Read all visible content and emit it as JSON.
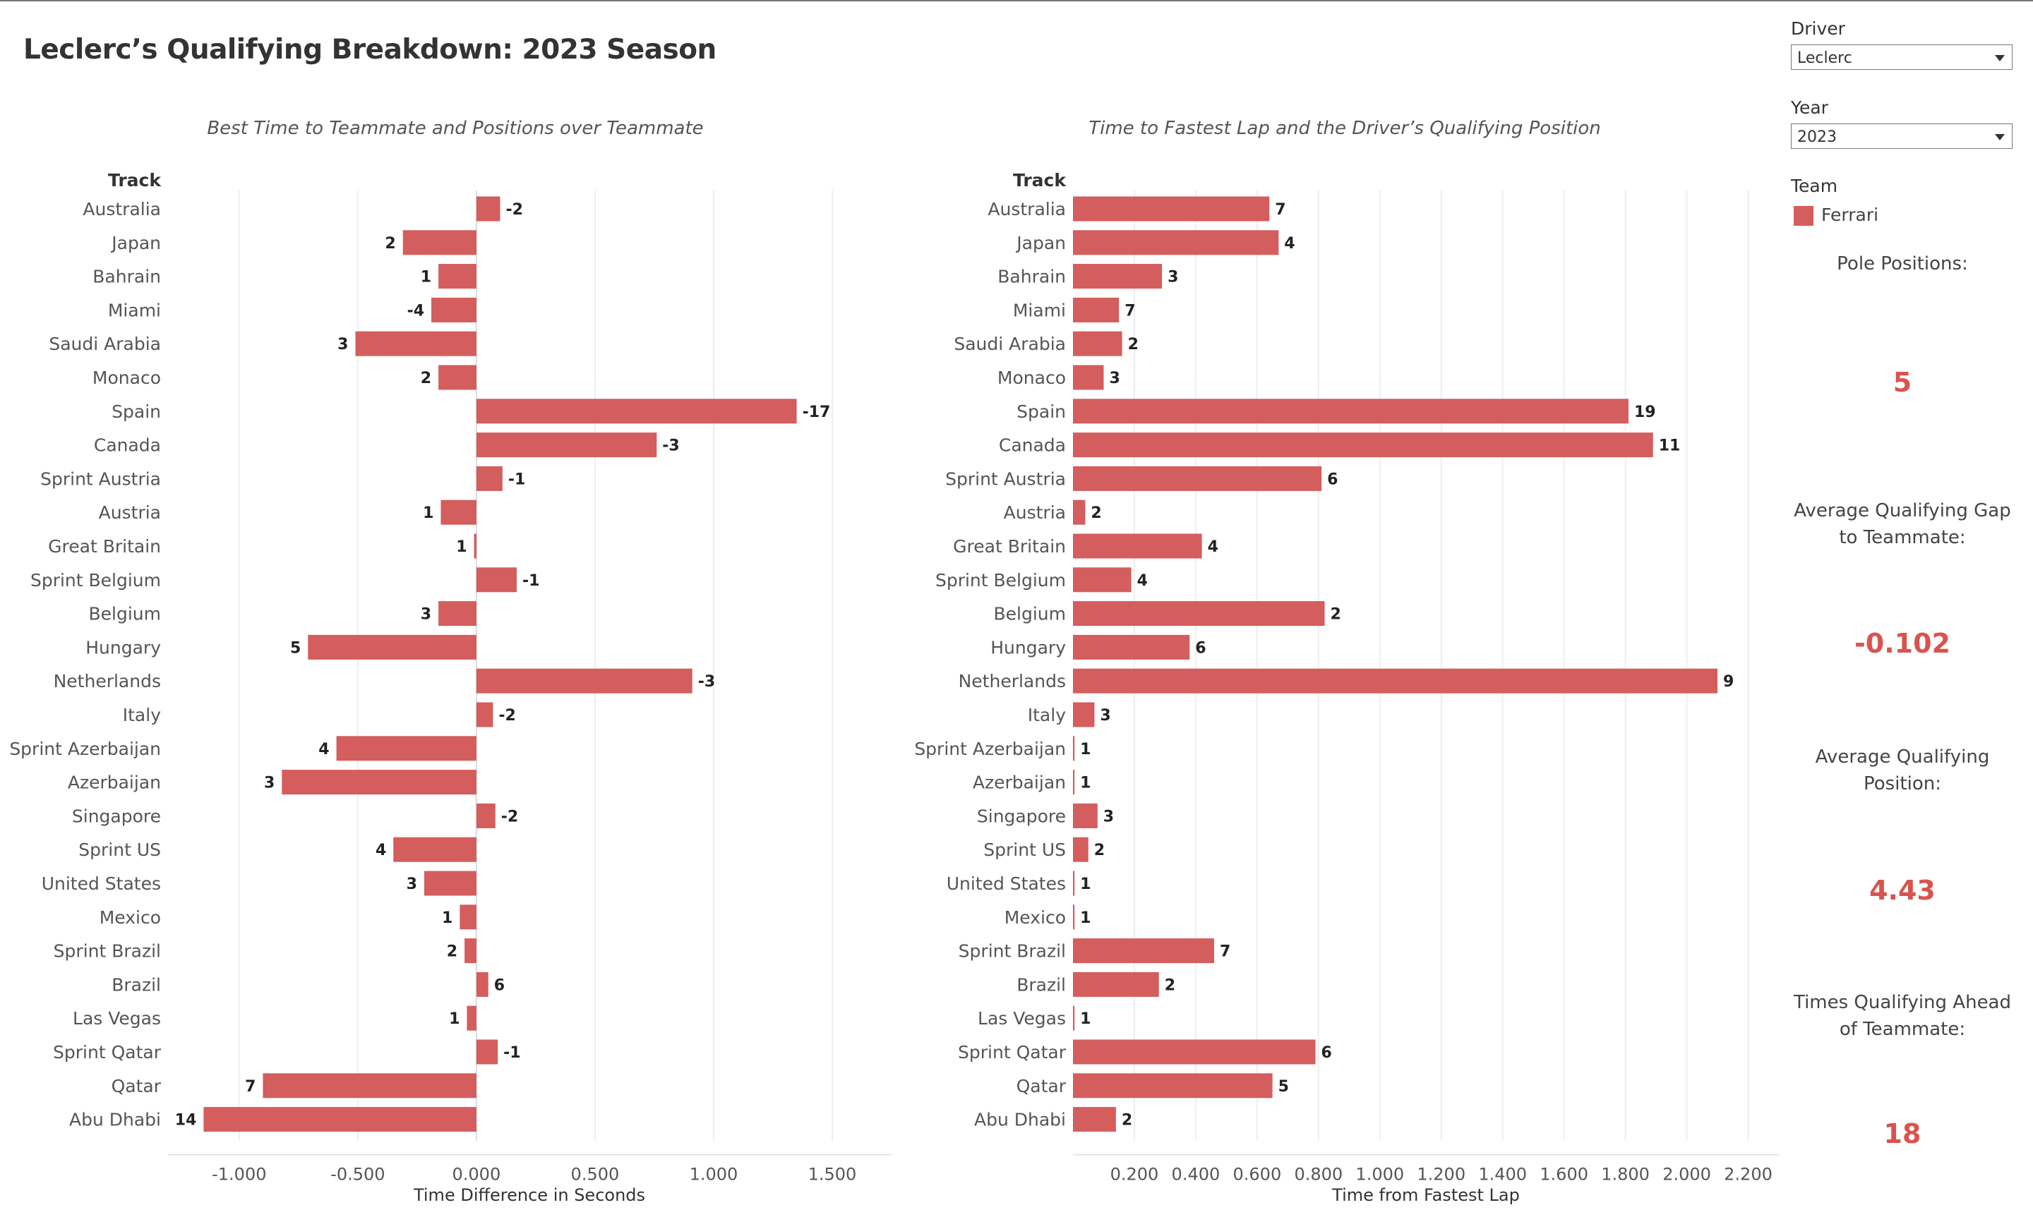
{
  "title": "Leclerc’s Qualifying Breakdown: 2023 Season",
  "colors": {
    "bar": "#d45d5d",
    "kpi": "#d9534f",
    "text": "#333333",
    "gridline": "#eeeeee"
  },
  "sidebar": {
    "driver_label": "Driver",
    "driver_value": "Leclerc",
    "year_label": "Year",
    "year_value": "2023",
    "team_label": "Team",
    "team_legend": "Ferrari",
    "kpis": [
      {
        "label_lines": [
          "Pole Positions:"
        ],
        "value": "5"
      },
      {
        "label_lines": [
          "Average Qualifying Gap",
          "to Teammate:"
        ],
        "value": "-0.102"
      },
      {
        "label_lines": [
          "Average Qualifying",
          "Position:"
        ],
        "value": "4.43"
      },
      {
        "label_lines": [
          "Times Qualifying Ahead",
          "of Teammate:"
        ],
        "value": "18"
      }
    ]
  },
  "chart_data": [
    {
      "type": "bar",
      "orientation": "horizontal",
      "title": "Best Time to Teammate and Positions over Teammate",
      "row_header": "Track",
      "xlabel": "Time Difference in Seconds",
      "xlim": [
        -1.3,
        1.75
      ],
      "xticks": [
        -1.0,
        -0.5,
        0.0,
        0.5,
        1.0,
        1.5
      ],
      "xtick_labels": [
        "-1.000",
        "-0.500",
        "0.000",
        "0.500",
        "1.000",
        "1.500"
      ],
      "grid": true,
      "categories": [
        "Australia",
        "Japan",
        "Bahrain",
        "Miami",
        "Saudi Arabia",
        "Monaco",
        "Spain",
        "Canada",
        "Sprint Austria",
        "Austria",
        "Great Britain",
        "Sprint Belgium",
        "Belgium",
        "Hungary",
        "Netherlands",
        "Italy",
        "Sprint Azerbaijan",
        "Azerbaijan",
        "Singapore",
        "Sprint US",
        "United States",
        "Mexico",
        "Sprint Brazil",
        "Brazil",
        "Las Vegas",
        "Sprint Qatar",
        "Qatar",
        "Abu Dhabi"
      ],
      "values": [
        0.1,
        -0.31,
        -0.16,
        -0.19,
        -0.51,
        -0.16,
        1.35,
        0.76,
        0.11,
        -0.15,
        -0.01,
        0.17,
        -0.16,
        -0.71,
        0.91,
        0.07,
        -0.59,
        -0.82,
        0.08,
        -0.35,
        -0.22,
        -0.07,
        -0.05,
        0.05,
        -0.04,
        0.09,
        -0.9,
        -1.15
      ],
      "labels": [
        "-2",
        "2",
        "1",
        "-4",
        "3",
        "2",
        "-17",
        "-3",
        "-1",
        "1",
        "1",
        "-1",
        "3",
        "5",
        "-3",
        "-2",
        "4",
        "3",
        "-2",
        "4",
        "3",
        "1",
        "2",
        "6",
        "1",
        "-1",
        "7",
        "14"
      ]
    },
    {
      "type": "bar",
      "orientation": "horizontal",
      "title": "Time to Fastest Lap and the Driver’s Qualifying Position",
      "row_header": "Track",
      "xlabel": "Time from Fastest Lap",
      "xlim": [
        0,
        2.3
      ],
      "xticks": [
        0.2,
        0.4,
        0.6,
        0.8,
        1.0,
        1.2,
        1.4,
        1.6,
        1.8,
        2.0,
        2.2
      ],
      "xtick_labels": [
        "0.200",
        "0.400",
        "0.600",
        "0.800",
        "1.000",
        "1.200",
        "1.400",
        "1.600",
        "1.800",
        "2.000",
        "2.200"
      ],
      "grid": true,
      "categories": [
        "Australia",
        "Japan",
        "Bahrain",
        "Miami",
        "Saudi Arabia",
        "Monaco",
        "Spain",
        "Canada",
        "Sprint Austria",
        "Austria",
        "Great Britain",
        "Sprint Belgium",
        "Belgium",
        "Hungary",
        "Netherlands",
        "Italy",
        "Sprint Azerbaijan",
        "Azerbaijan",
        "Singapore",
        "Sprint US",
        "United States",
        "Mexico",
        "Sprint Brazil",
        "Brazil",
        "Las Vegas",
        "Sprint Qatar",
        "Qatar",
        "Abu Dhabi"
      ],
      "values": [
        0.64,
        0.67,
        0.29,
        0.15,
        0.16,
        0.1,
        1.81,
        1.89,
        0.81,
        0.04,
        0.42,
        0.19,
        0.82,
        0.38,
        2.1,
        0.07,
        0.005,
        0.005,
        0.08,
        0.05,
        0.005,
        0.005,
        0.46,
        0.28,
        0.005,
        0.79,
        0.65,
        0.14
      ],
      "labels": [
        "7",
        "4",
        "3",
        "7",
        "2",
        "3",
        "19",
        "11",
        "6",
        "2",
        "4",
        "4",
        "2",
        "6",
        "9",
        "3",
        "1",
        "1",
        "3",
        "2",
        "1",
        "1",
        "7",
        "2",
        "1",
        "6",
        "5",
        "2"
      ]
    }
  ]
}
